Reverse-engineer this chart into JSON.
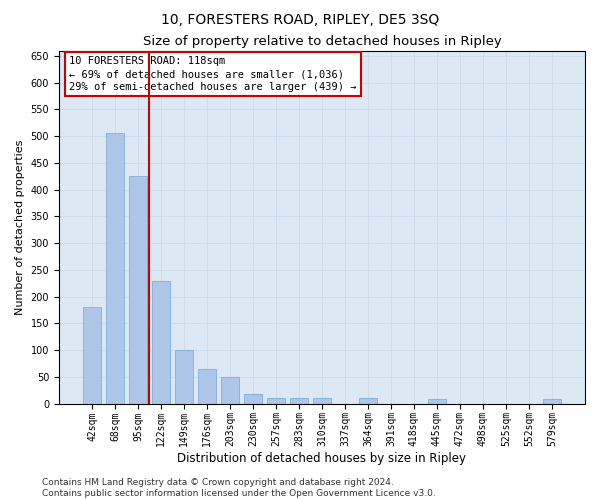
{
  "title": "10, FORESTERS ROAD, RIPLEY, DE5 3SQ",
  "subtitle": "Size of property relative to detached houses in Ripley",
  "xlabel": "Distribution of detached houses by size in Ripley",
  "ylabel": "Number of detached properties",
  "categories": [
    "42sqm",
    "68sqm",
    "95sqm",
    "122sqm",
    "149sqm",
    "176sqm",
    "203sqm",
    "230sqm",
    "257sqm",
    "283sqm",
    "310sqm",
    "337sqm",
    "364sqm",
    "391sqm",
    "418sqm",
    "445sqm",
    "472sqm",
    "498sqm",
    "525sqm",
    "552sqm",
    "579sqm"
  ],
  "values": [
    180,
    505,
    425,
    230,
    100,
    65,
    50,
    18,
    10,
    10,
    10,
    0,
    10,
    0,
    0,
    8,
    0,
    0,
    0,
    0,
    8
  ],
  "bar_color": "#aec6e8",
  "bar_edge_color": "#6fa8d6",
  "vline_index": 2.5,
  "vline_color": "#cc0000",
  "annotation_text": "10 FORESTERS ROAD: 118sqm\n← 69% of detached houses are smaller (1,036)\n29% of semi-detached houses are larger (439) →",
  "annotation_box_color": "#ffffff",
  "annotation_box_edge": "#cc0000",
  "grid_color": "#c8d8e8",
  "background_color": "#dce9f5",
  "ylim": [
    0,
    660
  ],
  "yticks": [
    0,
    50,
    100,
    150,
    200,
    250,
    300,
    350,
    400,
    450,
    500,
    550,
    600,
    650
  ],
  "footer": "Contains HM Land Registry data © Crown copyright and database right 2024.\nContains public sector information licensed under the Open Government Licence v3.0.",
  "title_fontsize": 10,
  "subtitle_fontsize": 9.5,
  "xlabel_fontsize": 8.5,
  "ylabel_fontsize": 8,
  "tick_fontsize": 7,
  "footer_fontsize": 6.5,
  "annot_fontsize": 7.5
}
